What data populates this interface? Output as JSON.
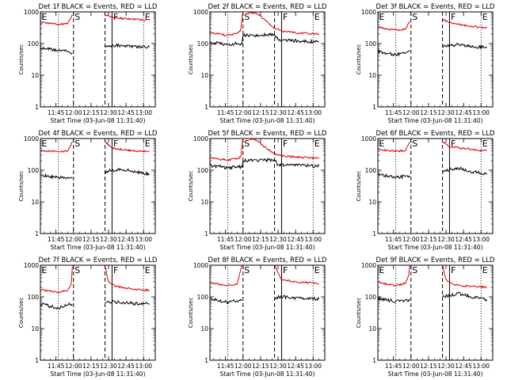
{
  "figure": {
    "x_label": "Start Time (03-Jun-08 11:31:40)",
    "y_label": "Counts/sec",
    "x_ticks": [
      "11:45",
      "12:00",
      "12:15",
      "12:30",
      "12:45",
      "13:00"
    ],
    "y_ticks": [
      "1",
      "10",
      "100",
      "1000"
    ],
    "series": [
      {
        "name": "Events",
        "color": "#000000"
      },
      {
        "name": "LLD",
        "color": "#dd0000"
      }
    ]
  },
  "chart_data": [
    {
      "type": "line",
      "title": "Det 1f BLACK = Events, RED = LLD",
      "xlabel": "Start Time (03-Jun-08 11:31:40)",
      "ylabel": "Counts/sec",
      "yscale": "log",
      "ylim": [
        1,
        1000
      ],
      "xlim": [
        "11:31:40",
        "13:10:00"
      ],
      "markers": [
        {
          "label": "E",
          "time": "11:31:40",
          "style": "dotted"
        },
        {
          "label": "S",
          "time": "12:00",
          "style": "dashed"
        },
        {
          "time": "11:47",
          "style": "dotted"
        },
        {
          "time": "12:27",
          "style": "dashed"
        },
        {
          "label": "F",
          "time": "12:33",
          "style": "solid"
        },
        {
          "label": "E",
          "time": "13:00",
          "style": "dotted"
        }
      ],
      "gaps": [
        [
          "11:59",
          "12:27"
        ]
      ],
      "series": [
        {
          "name": "Events",
          "x": [
            "11:31:40",
            "11:40",
            "11:47",
            "11:55",
            "11:59",
            "12:27",
            "12:33",
            "12:45",
            "12:58",
            "13:05"
          ],
          "y": [
            75,
            66,
            60,
            56,
            50,
            80,
            88,
            86,
            80,
            78
          ]
        },
        {
          "name": "LLD",
          "x": [
            "11:31:40",
            "11:40",
            "11:47",
            "11:55",
            "11:59",
            "12:27",
            "12:33",
            "12:45",
            "12:58",
            "13:05"
          ],
          "y": [
            470,
            440,
            410,
            420,
            800,
            800,
            660,
            600,
            560,
            540
          ]
        }
      ]
    },
    {
      "type": "line",
      "title": "Det 2f BLACK = Events, RED = LLD",
      "xlabel": "Start Time (03-Jun-08 11:31:40)",
      "ylabel": "Counts/sec",
      "yscale": "log",
      "ylim": [
        1,
        1000
      ],
      "xlim": [
        "11:31:40",
        "13:10:00"
      ],
      "markers": [
        {
          "time": "11:47",
          "style": "dotted"
        },
        {
          "label": "S",
          "time": "12:00",
          "style": "dashed"
        },
        {
          "time": "12:27",
          "style": "dashed"
        },
        {
          "label": "F",
          "time": "12:33",
          "style": "solid"
        },
        {
          "label": "E",
          "time": "13:00",
          "style": "dotted"
        }
      ],
      "gaps": [],
      "series": [
        {
          "name": "Events",
          "x": [
            "11:31:40",
            "11:40",
            "11:47",
            "11:55",
            "11:59",
            "12:00",
            "12:27",
            "12:30",
            "12:40",
            "12:50",
            "13:05"
          ],
          "y": [
            110,
            100,
            92,
            100,
            95,
            180,
            190,
            130,
            125,
            120,
            110
          ]
        },
        {
          "name": "LLD",
          "x": [
            "11:31:40",
            "11:40",
            "11:47",
            "11:55",
            "11:58",
            "12:00",
            "12:05",
            "12:12",
            "12:20",
            "12:27",
            "12:35",
            "12:45",
            "12:55",
            "13:05"
          ],
          "y": [
            230,
            200,
            180,
            210,
            250,
            1100,
            1000,
            870,
            520,
            300,
            240,
            220,
            210,
            200
          ]
        }
      ]
    },
    {
      "type": "line",
      "title": "Det 3f BLACK = Events, RED = LLD",
      "xlabel": "Start Time (03-Jun-08 11:31:40)",
      "ylabel": "Counts/sec",
      "yscale": "log",
      "ylim": [
        1,
        1000
      ],
      "xlim": [
        "11:31:40",
        "13:10:00"
      ],
      "markers": [
        {
          "label": "E",
          "time": "11:31:40",
          "style": "dotted"
        },
        {
          "label": "S",
          "time": "12:00",
          "style": "dashed"
        },
        {
          "time": "11:47",
          "style": "dotted"
        },
        {
          "time": "12:27",
          "style": "dashed"
        },
        {
          "label": "F",
          "time": "12:33",
          "style": "solid"
        },
        {
          "label": "E",
          "time": "13:00",
          "style": "dotted"
        }
      ],
      "gaps": [
        [
          "11:59",
          "12:27"
        ]
      ],
      "series": [
        {
          "name": "Events",
          "x": [
            "11:31:40",
            "11:40",
            "11:47",
            "11:55",
            "11:59",
            "12:27",
            "12:33",
            "12:45",
            "12:58",
            "13:05"
          ],
          "y": [
            55,
            48,
            45,
            50,
            60,
            80,
            90,
            88,
            78,
            75
          ]
        },
        {
          "name": "LLD",
          "x": [
            "11:31:40",
            "11:40",
            "11:47",
            "11:55",
            "11:59",
            "12:27",
            "12:33",
            "12:45",
            "12:58",
            "13:05"
          ],
          "y": [
            330,
            290,
            270,
            280,
            500,
            600,
            450,
            380,
            330,
            320
          ]
        }
      ]
    },
    {
      "type": "line",
      "title": "Det 4f BLACK = Events, RED = LLD",
      "xlabel": "Start Time (03-Jun-08 11:31:40)",
      "ylabel": "Counts/sec",
      "yscale": "log",
      "ylim": [
        1,
        1000
      ],
      "xlim": [
        "11:31:40",
        "13:10:00"
      ],
      "markers": [
        {
          "label": "E",
          "time": "11:31:40",
          "style": "dotted"
        },
        {
          "label": "S",
          "time": "12:00",
          "style": "dashed"
        },
        {
          "time": "11:47",
          "style": "dotted"
        },
        {
          "time": "12:27",
          "style": "dashed"
        },
        {
          "label": "F",
          "time": "12:33",
          "style": "solid"
        },
        {
          "label": "E",
          "time": "13:00",
          "style": "dotted"
        }
      ],
      "gaps": [
        [
          "11:59",
          "12:27"
        ]
      ],
      "series": [
        {
          "name": "Events",
          "x": [
            "11:31:40",
            "11:40",
            "11:47",
            "11:55",
            "11:59",
            "12:27",
            "12:33",
            "12:40",
            "12:50",
            "13:00",
            "13:05"
          ],
          "y": [
            70,
            62,
            58,
            60,
            55,
            90,
            100,
            110,
            95,
            80,
            75
          ]
        },
        {
          "name": "LLD",
          "x": [
            "11:31:40",
            "11:40",
            "11:47",
            "11:55",
            "11:59",
            "12:27",
            "12:33",
            "12:45",
            "12:58",
            "13:05"
          ],
          "y": [
            420,
            400,
            380,
            400,
            800,
            800,
            500,
            430,
            400,
            390
          ]
        }
      ]
    },
    {
      "type": "line",
      "title": "Det 5f BLACK = Events, RED = LLD",
      "xlabel": "Start Time (03-Jun-08 11:31:40)",
      "ylabel": "Counts/sec",
      "yscale": "log",
      "ylim": [
        1,
        1000
      ],
      "xlim": [
        "11:31:40",
        "13:10:00"
      ],
      "markers": [
        {
          "time": "11:47",
          "style": "dotted"
        },
        {
          "label": "S",
          "time": "12:00",
          "style": "dashed"
        },
        {
          "time": "12:27",
          "style": "dashed"
        },
        {
          "label": "F",
          "time": "12:33",
          "style": "solid"
        },
        {
          "label": "E",
          "time": "13:00",
          "style": "dotted"
        }
      ],
      "gaps": [],
      "series": [
        {
          "name": "Events",
          "x": [
            "11:31:40",
            "11:40",
            "11:47",
            "11:55",
            "11:59",
            "12:00",
            "12:27",
            "12:30",
            "12:40",
            "12:50",
            "13:05"
          ],
          "y": [
            140,
            130,
            120,
            130,
            125,
            200,
            210,
            150,
            145,
            140,
            135
          ]
        },
        {
          "name": "LLD",
          "x": [
            "11:31:40",
            "11:40",
            "11:47",
            "11:55",
            "11:58",
            "12:00",
            "12:05",
            "12:12",
            "12:20",
            "12:27",
            "12:35",
            "12:45",
            "12:55",
            "13:05"
          ],
          "y": [
            240,
            220,
            210,
            230,
            260,
            1100,
            1000,
            850,
            500,
            320,
            280,
            260,
            250,
            240
          ]
        }
      ]
    },
    {
      "type": "line",
      "title": "Det 6f BLACK = Events, RED = LLD",
      "xlabel": "Start Time (03-Jun-08 11:31:40)",
      "ylabel": "Counts/sec",
      "yscale": "log",
      "ylim": [
        1,
        1000
      ],
      "xlim": [
        "11:31:40",
        "13:10:00"
      ],
      "markers": [
        {
          "label": "E",
          "time": "11:31:40",
          "style": "dotted"
        },
        {
          "label": "S",
          "time": "12:00",
          "style": "dashed"
        },
        {
          "time": "11:47",
          "style": "dotted"
        },
        {
          "time": "12:27",
          "style": "dashed"
        },
        {
          "label": "F",
          "time": "12:33",
          "style": "solid"
        },
        {
          "label": "E",
          "time": "13:00",
          "style": "dotted"
        }
      ],
      "gaps": [
        [
          "11:59",
          "12:27"
        ]
      ],
      "series": [
        {
          "name": "Events",
          "x": [
            "11:31:40",
            "11:40",
            "11:47",
            "11:55",
            "11:59",
            "12:27",
            "12:33",
            "12:40",
            "12:50",
            "13:00",
            "13:05"
          ],
          "y": [
            75,
            66,
            60,
            64,
            60,
            95,
            105,
            120,
            95,
            80,
            75
          ]
        },
        {
          "name": "LLD",
          "x": [
            "11:31:40",
            "11:40",
            "11:47",
            "11:55",
            "11:59",
            "12:27",
            "12:33",
            "12:45",
            "12:58",
            "13:05"
          ],
          "y": [
            450,
            420,
            400,
            410,
            800,
            800,
            560,
            480,
            430,
            410
          ]
        }
      ]
    },
    {
      "type": "line",
      "title": "Det 7f BLACK = Events, RED = LLD",
      "xlabel": "Start Time (03-Jun-08 11:31:40)",
      "ylabel": "Counts/sec",
      "yscale": "log",
      "ylim": [
        1,
        1000
      ],
      "xlim": [
        "11:31:40",
        "13:10:00"
      ],
      "markers": [
        {
          "label": "E",
          "time": "11:31:40",
          "style": "dotted"
        },
        {
          "label": "S",
          "time": "12:00",
          "style": "dashed"
        },
        {
          "time": "11:47",
          "style": "dotted"
        },
        {
          "time": "12:27",
          "style": "dashed"
        },
        {
          "label": "F",
          "time": "12:33",
          "style": "solid"
        },
        {
          "label": "E",
          "time": "13:00",
          "style": "dotted"
        }
      ],
      "gaps": [
        [
          "11:59",
          "12:27"
        ]
      ],
      "series": [
        {
          "name": "Events",
          "x": [
            "11:31:40",
            "11:40",
            "11:47",
            "11:55",
            "11:59",
            "12:27",
            "12:33",
            "12:45",
            "12:58",
            "13:05"
          ],
          "y": [
            60,
            50,
            45,
            55,
            60,
            65,
            70,
            65,
            60,
            60
          ]
        },
        {
          "name": "LLD",
          "x": [
            "11:31:40",
            "11:40",
            "11:47",
            "11:55",
            "11:58",
            "11:59",
            "12:27",
            "12:30",
            "12:36",
            "12:45",
            "12:58",
            "13:05"
          ],
          "y": [
            170,
            150,
            140,
            160,
            250,
            900,
            900,
            300,
            220,
            190,
            170,
            160
          ]
        }
      ]
    },
    {
      "type": "line",
      "title": "Det 8f BLACK = Events, RED = LLD",
      "xlabel": "Start Time (03-Jun-08 11:31:40)",
      "ylabel": "Counts/sec",
      "yscale": "log",
      "ylim": [
        1,
        1000
      ],
      "xlim": [
        "11:31:40",
        "13:10:00"
      ],
      "markers": [
        {
          "time": "11:47",
          "style": "dotted"
        },
        {
          "label": "S",
          "time": "12:00",
          "style": "dashed"
        },
        {
          "time": "12:27",
          "style": "dashed"
        },
        {
          "label": "F",
          "time": "12:33",
          "style": "solid"
        },
        {
          "label": "E",
          "time": "13:00",
          "style": "dotted"
        }
      ],
      "gaps": [
        [
          "11:59",
          "12:27"
        ]
      ],
      "series": [
        {
          "name": "Events",
          "x": [
            "11:31:40",
            "11:40",
            "11:47",
            "11:55",
            "11:59",
            "12:27",
            "12:33",
            "12:45",
            "12:58",
            "13:05"
          ],
          "y": [
            90,
            75,
            68,
            75,
            80,
            95,
            100,
            92,
            90,
            85
          ]
        },
        {
          "name": "LLD",
          "x": [
            "11:31:40",
            "11:40",
            "11:47",
            "11:55",
            "11:59",
            "12:27",
            "12:33",
            "12:45",
            "12:58",
            "13:05"
          ],
          "y": [
            270,
            250,
            230,
            250,
            1000,
            1000,
            350,
            300,
            280,
            260
          ]
        }
      ]
    },
    {
      "type": "line",
      "title": "Det 9f BLACK = Events, RED = LLD",
      "xlabel": "Start Time (03-Jun-08 11:31:40)",
      "ylabel": "Counts/sec",
      "yscale": "log",
      "ylim": [
        1,
        1000
      ],
      "xlim": [
        "11:31:40",
        "13:10:00"
      ],
      "markers": [
        {
          "label": "E",
          "time": "11:31:40",
          "style": "dotted"
        },
        {
          "label": "S",
          "time": "12:00",
          "style": "dashed"
        },
        {
          "time": "11:47",
          "style": "dotted"
        },
        {
          "time": "12:27",
          "style": "dashed"
        },
        {
          "label": "F",
          "time": "12:33",
          "style": "solid"
        },
        {
          "label": "E",
          "time": "13:00",
          "style": "dotted"
        }
      ],
      "gaps": [
        [
          "11:59",
          "12:27"
        ]
      ],
      "series": [
        {
          "name": "Events",
          "x": [
            "11:31:40",
            "11:40",
            "11:47",
            "11:55",
            "11:59",
            "12:27",
            "12:33",
            "12:40",
            "12:50",
            "13:00",
            "13:05"
          ],
          "y": [
            90,
            78,
            72,
            78,
            75,
            100,
            110,
            130,
            105,
            90,
            80
          ]
        },
        {
          "name": "LLD",
          "x": [
            "11:31:40",
            "11:40",
            "11:47",
            "11:55",
            "11:58",
            "11:59",
            "12:27",
            "12:30",
            "12:36",
            "12:45",
            "12:58",
            "13:05"
          ],
          "y": [
            300,
            250,
            230,
            260,
            450,
            1000,
            1000,
            350,
            250,
            220,
            210,
            200
          ]
        }
      ]
    }
  ]
}
